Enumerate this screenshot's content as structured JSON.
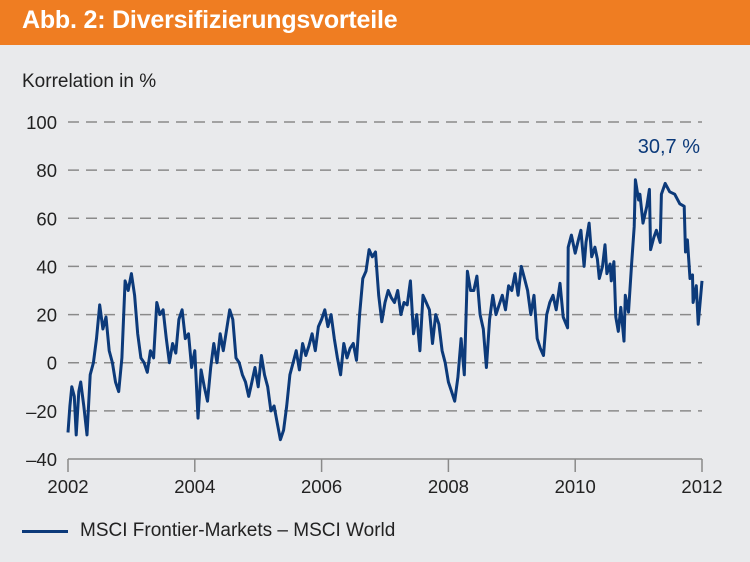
{
  "header": {
    "title": "Abb. 2: Diversifizierungsvorteile",
    "color": "#ef7d22"
  },
  "chart_data": {
    "type": "line",
    "title": "Abb. 2: Diversifizierungsvorteile",
    "ylabel": "Korrelation in %",
    "xlabel": "",
    "xlim": [
      2002,
      2012
    ],
    "ylim": [
      -40,
      100
    ],
    "xticks": [
      "2002",
      "2004",
      "2006",
      "2008",
      "2010",
      "2012"
    ],
    "yticks": [
      "100",
      "80",
      "60",
      "40",
      "20",
      "0",
      "–20",
      "–40"
    ],
    "grid": "horizontal dashed",
    "legend_position": "bottom-left",
    "annotation": "30,7 %",
    "series": [
      {
        "name": "MSCI Frontier-Markets – MSCI World",
        "color": "#0c3a7a",
        "x": [
          2002.0,
          2002.03,
          2002.06,
          2002.1,
          2002.13,
          2002.17,
          2002.2,
          2002.25,
          2002.3,
          2002.35,
          2002.4,
          2002.45,
          2002.5,
          2002.55,
          2002.6,
          2002.65,
          2002.7,
          2002.75,
          2002.8,
          2002.85,
          2002.9,
          2002.95,
          2003.0,
          2003.05,
          2003.1,
          2003.15,
          2003.2,
          2003.25,
          2003.3,
          2003.35,
          2003.4,
          2003.45,
          2003.5,
          2003.55,
          2003.6,
          2003.65,
          2003.7,
          2003.75,
          2003.8,
          2003.85,
          2003.9,
          2003.95,
          2004.0,
          2004.05,
          2004.1,
          2004.15,
          2004.2,
          2004.25,
          2004.3,
          2004.35,
          2004.4,
          2004.45,
          2004.55,
          2004.6,
          2004.65,
          2004.7,
          2004.75,
          2004.8,
          2004.85,
          2004.9,
          2004.95,
          2005.0,
          2005.05,
          2005.1,
          2005.15,
          2005.2,
          2005.25,
          2005.3,
          2005.35,
          2005.4,
          2005.45,
          2005.5,
          2005.55,
          2005.6,
          2005.65,
          2005.7,
          2005.75,
          2005.8,
          2005.85,
          2005.9,
          2005.95,
          2006.0,
          2006.05,
          2006.1,
          2006.15,
          2006.2,
          2006.25,
          2006.3,
          2006.35,
          2006.4,
          2006.45,
          2006.5,
          2006.55,
          2006.6,
          2006.65,
          2006.7,
          2006.75,
          2006.8,
          2006.85,
          2006.9,
          2006.95,
          2007.0,
          2007.05,
          2007.1,
          2007.15,
          2007.2,
          2007.25,
          2007.3,
          2007.35,
          2007.4,
          2007.45,
          2007.5,
          2007.55,
          2007.6,
          2007.65,
          2007.7,
          2007.75,
          2007.8,
          2007.85,
          2007.9,
          2007.95,
          2008.0,
          2008.05,
          2008.1,
          2008.15,
          2008.2,
          2008.25,
          2008.3,
          2008.35,
          2008.4,
          2008.45,
          2008.5,
          2008.55,
          2008.6,
          2008.65,
          2008.7,
          2008.75,
          2008.8,
          2008.85,
          2008.9,
          2008.95,
          2009.0,
          2009.05,
          2009.1,
          2009.15,
          2009.2,
          2009.25,
          2009.3,
          2009.35,
          2009.4,
          2009.45,
          2009.5,
          2009.55,
          2009.6,
          2009.65,
          2009.7,
          2009.76,
          2009.81,
          2009.88,
          2009.89,
          2009.94,
          2010.0,
          2010.05,
          2010.09,
          2010.14,
          2010.17,
          2010.22,
          2010.26,
          2010.31,
          2010.35,
          2010.38,
          2010.43,
          2010.47,
          2010.5,
          2010.55,
          2010.57,
          2010.61,
          2010.64,
          2010.68,
          2010.72,
          2010.77,
          2010.79,
          2010.84,
          2010.89,
          2010.93,
          2010.95,
          2011.0,
          2011.02,
          2011.07,
          2011.13,
          2011.17,
          2011.19,
          2011.24,
          2011.28,
          2011.34,
          2011.36,
          2011.42,
          2011.49,
          2011.57,
          2011.65,
          2011.72,
          2011.74,
          2011.77,
          2011.81,
          2011.85,
          2011.86,
          2011.91,
          2011.94,
          2012.0
        ],
        "y": [
          -29,
          -18,
          -10,
          -14,
          -30,
          -12,
          -8,
          -18,
          -30,
          -5,
          0,
          10,
          24,
          14,
          19,
          5,
          0,
          -8,
          -12,
          2,
          34,
          30,
          37,
          28,
          12,
          2,
          0,
          -4,
          5,
          2,
          25,
          20,
          22,
          10,
          0,
          8,
          4,
          18,
          22,
          10,
          12,
          -2,
          5,
          -23,
          -3,
          -10,
          -16,
          -2,
          8,
          0,
          12,
          5,
          22,
          18,
          2,
          0,
          -5,
          -8,
          -14,
          -8,
          -2,
          -10,
          3,
          -5,
          -10,
          -20,
          -18,
          -25,
          -32,
          -28,
          -18,
          -5,
          0,
          5,
          -3,
          8,
          3,
          7,
          12,
          5,
          15,
          18,
          22,
          15,
          20,
          10,
          2,
          -5,
          8,
          2,
          6,
          8,
          1,
          20,
          35,
          38,
          47,
          44,
          46,
          28,
          17,
          25,
          30,
          27,
          25,
          30,
          20,
          25,
          24,
          34,
          12,
          20,
          5,
          28,
          25,
          22,
          8,
          20,
          16,
          5,
          0,
          -8,
          -12,
          -16,
          -6,
          10,
          -5,
          38,
          30,
          30,
          36,
          20,
          14,
          -2,
          18,
          28,
          20,
          24,
          28,
          22,
          32,
          30,
          37,
          28,
          40,
          35,
          30,
          20,
          28,
          10,
          6,
          3,
          20,
          25,
          28,
          22,
          33,
          19,
          14.5,
          48,
          53,
          45.5,
          51,
          55,
          40,
          50,
          58,
          44,
          48,
          43,
          35,
          40,
          49,
          37,
          41,
          34,
          42,
          19,
          13,
          23,
          9,
          28,
          21,
          41,
          56.5,
          76,
          67.6,
          70,
          58,
          65,
          72,
          47,
          52,
          55,
          50,
          70,
          74.5,
          71,
          70,
          66,
          65,
          46,
          51,
          35,
          36.5,
          25,
          32,
          16,
          34
        ]
      }
    ]
  }
}
